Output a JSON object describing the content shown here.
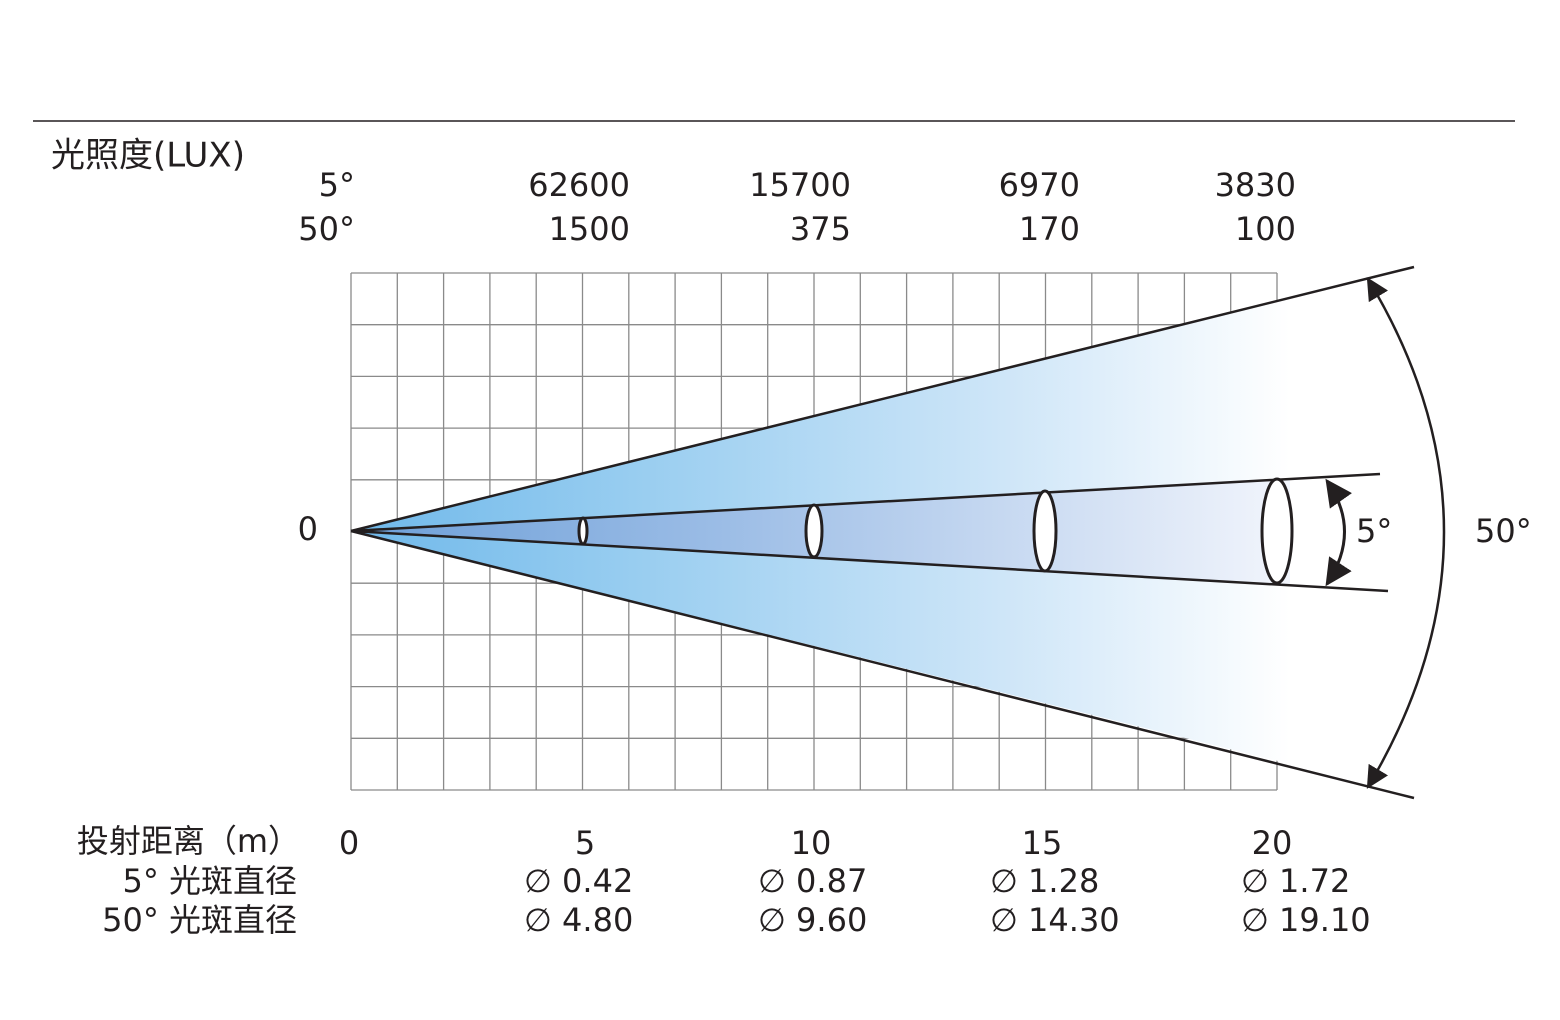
{
  "illuminance": {
    "title": "光照度(LUX)",
    "rows": [
      {
        "label": "5°",
        "values": [
          62600,
          15700,
          6970,
          3830
        ]
      },
      {
        "label": "50°",
        "values": [
          1500,
          375,
          170,
          100
        ]
      }
    ]
  },
  "origin_label": "0",
  "angles": {
    "narrow": "5°",
    "wide": "50°"
  },
  "distance": {
    "label": "投射距离（m）",
    "values": [
      0,
      5,
      10,
      15,
      20
    ]
  },
  "diameters": [
    {
      "label": "5° 光斑直径",
      "values": [
        "∅ 0.42",
        "∅ 0.87",
        "∅ 1.28",
        "∅ 1.72"
      ]
    },
    {
      "label": "50° 光斑直径",
      "values": [
        "∅ 4.80",
        "∅ 9.60",
        "∅ 14.30",
        "∅ 19.10"
      ]
    }
  ]
}
